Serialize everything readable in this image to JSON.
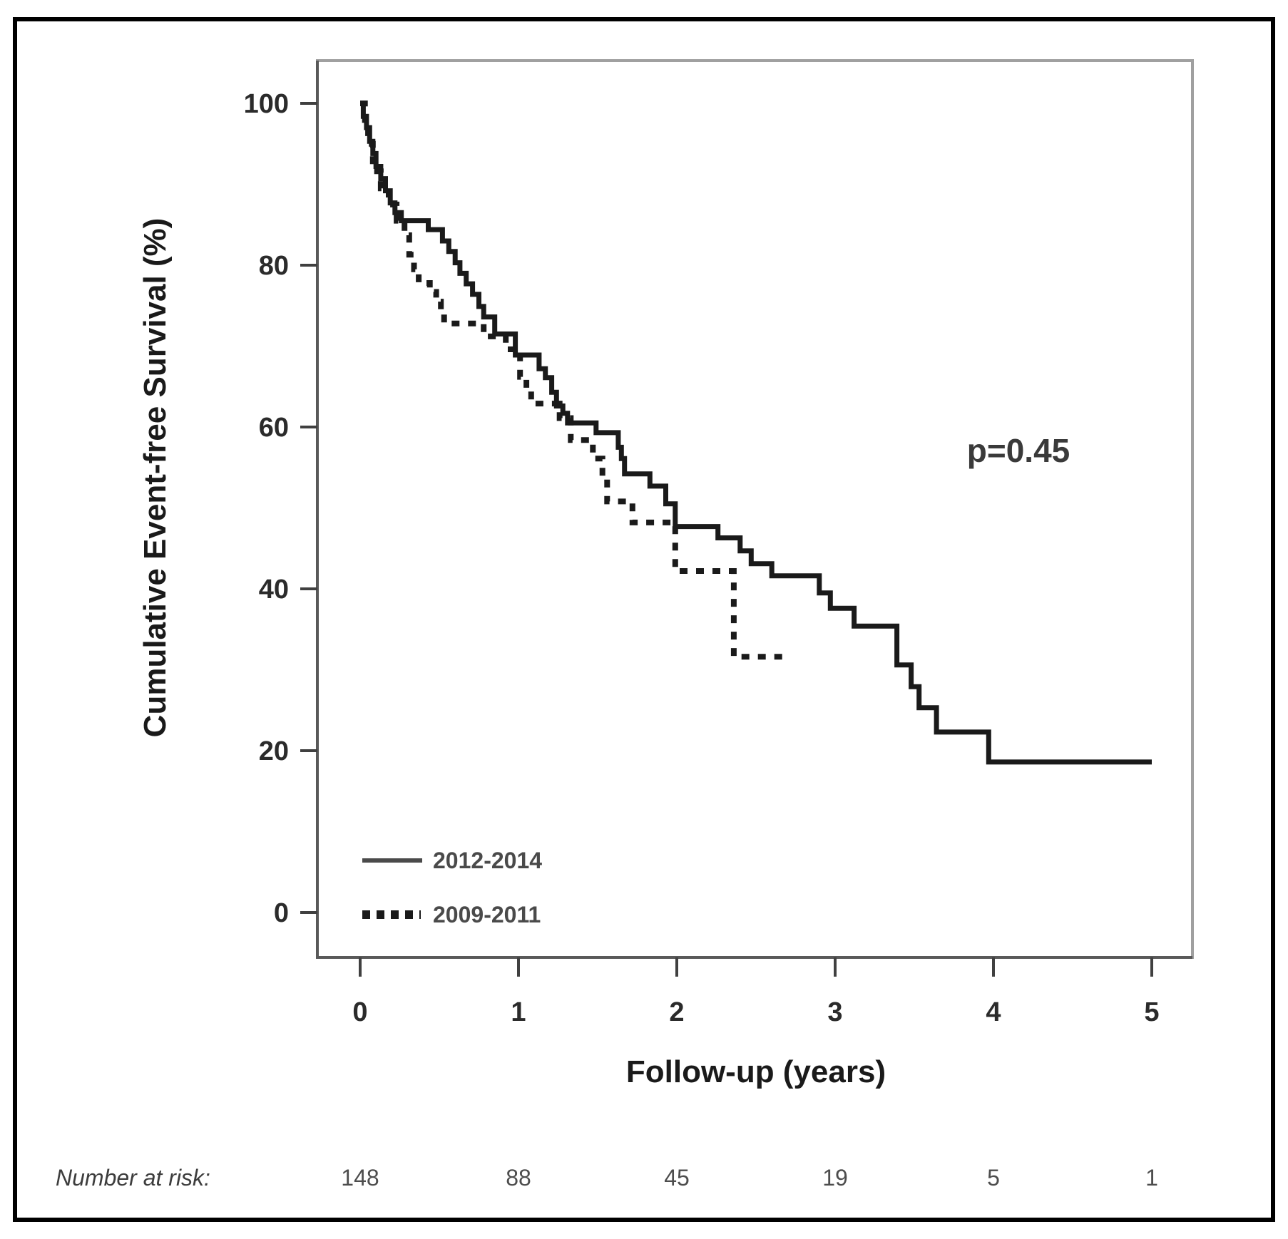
{
  "chart_data": {
    "type": "line",
    "subtype": "kaplan-meier-step-curves",
    "title": "",
    "xlabel": "Follow-up (years)",
    "ylabel": "Cumulative Event-free Survival (%)",
    "xlim": [
      0,
      5
    ],
    "ylim": [
      0,
      100
    ],
    "grid": false,
    "x_ticks": [
      "0",
      "1",
      "2",
      "3",
      "4",
      "5"
    ],
    "y_ticks": [
      "100",
      "80",
      "60",
      "40",
      "20",
      "0"
    ],
    "annotation": {
      "p_value_label": "p=0.45"
    },
    "legend_position": "inside-bottom-left",
    "curve_color": "#1a1a1a",
    "series": [
      {
        "name": "2012-2014",
        "style": "solid",
        "steps": [
          [
            0.0,
            100
          ],
          [
            0.02,
            98.4
          ],
          [
            0.04,
            97.0
          ],
          [
            0.06,
            95.3
          ],
          [
            0.08,
            93.8
          ],
          [
            0.1,
            92.2
          ],
          [
            0.13,
            90.7
          ],
          [
            0.16,
            89.2
          ],
          [
            0.19,
            87.7
          ],
          [
            0.22,
            86.5
          ],
          [
            0.26,
            85.5
          ],
          [
            0.43,
            84.4
          ],
          [
            0.52,
            83.0
          ],
          [
            0.56,
            81.7
          ],
          [
            0.6,
            80.3
          ],
          [
            0.63,
            79.0
          ],
          [
            0.67,
            77.7
          ],
          [
            0.71,
            76.4
          ],
          [
            0.75,
            74.9
          ],
          [
            0.78,
            73.6
          ],
          [
            0.85,
            71.5
          ],
          [
            0.98,
            68.9
          ],
          [
            1.13,
            67.2
          ],
          [
            1.17,
            66.1
          ],
          [
            1.21,
            64.3
          ],
          [
            1.24,
            62.6
          ],
          [
            1.28,
            61.7
          ],
          [
            1.31,
            60.5
          ],
          [
            1.49,
            59.3
          ],
          [
            1.63,
            57.5
          ],
          [
            1.65,
            56.1
          ],
          [
            1.67,
            54.2
          ],
          [
            1.83,
            52.7
          ],
          [
            1.93,
            50.5
          ],
          [
            1.99,
            47.7
          ],
          [
            2.26,
            46.3
          ],
          [
            2.4,
            44.7
          ],
          [
            2.47,
            43.1
          ],
          [
            2.6,
            41.6
          ],
          [
            2.9,
            39.5
          ],
          [
            2.97,
            37.6
          ],
          [
            3.12,
            35.4
          ],
          [
            3.39,
            30.6
          ],
          [
            3.48,
            27.9
          ],
          [
            3.53,
            25.3
          ],
          [
            3.64,
            22.3
          ],
          [
            3.97,
            18.6
          ],
          [
            5.0,
            18.6
          ]
        ]
      },
      {
        "name": "2009-2011",
        "style": "dashed",
        "steps": [
          [
            0.0,
            100
          ],
          [
            0.03,
            97.5
          ],
          [
            0.05,
            95.0
          ],
          [
            0.08,
            91.6
          ],
          [
            0.13,
            89.5
          ],
          [
            0.18,
            87.5
          ],
          [
            0.23,
            85.5
          ],
          [
            0.28,
            83.7
          ],
          [
            0.31,
            81.3
          ],
          [
            0.34,
            79.5
          ],
          [
            0.37,
            77.8
          ],
          [
            0.44,
            76.7
          ],
          [
            0.48,
            75.5
          ],
          [
            0.51,
            74.5
          ],
          [
            0.53,
            72.8
          ],
          [
            0.78,
            71.2
          ],
          [
            0.92,
            69.6
          ],
          [
            1.01,
            66.2
          ],
          [
            1.05,
            64.5
          ],
          [
            1.08,
            62.9
          ],
          [
            1.26,
            61.1
          ],
          [
            1.33,
            58.4
          ],
          [
            1.47,
            56.1
          ],
          [
            1.53,
            53.6
          ],
          [
            1.56,
            50.8
          ],
          [
            1.72,
            48.2
          ],
          [
            1.99,
            42.2
          ],
          [
            2.36,
            31.6
          ],
          [
            2.68,
            31.6
          ]
        ]
      }
    ],
    "number_at_risk": {
      "label": "Number at risk:",
      "times": [
        0,
        1,
        2,
        3,
        4,
        5
      ],
      "values": [
        "148",
        "88",
        "45",
        "19",
        "5",
        "1"
      ]
    }
  },
  "colors": {
    "curve": "#1a1a1a",
    "plot_border": "#a0a0a0",
    "axis": "#595959",
    "outer_border": "#000000",
    "text": "#2b2b2b"
  }
}
